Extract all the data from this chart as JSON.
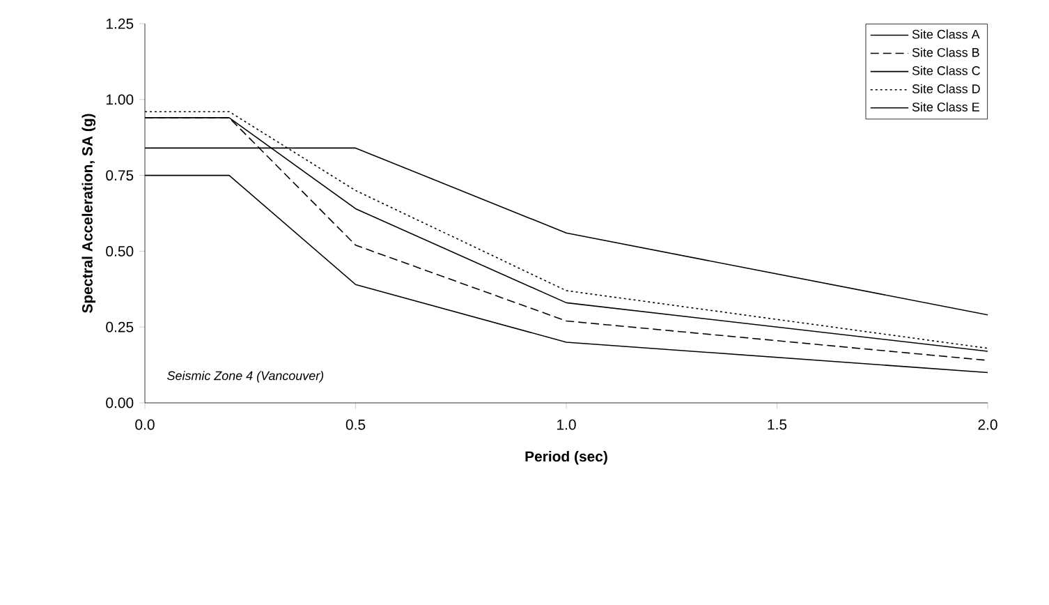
{
  "chart_data": {
    "type": "line",
    "xlabel": "Period (sec)",
    "ylabel": "Spectral Acceleration, SA (g)",
    "annotations": [
      "Seismic Zone 4 (Vancouver)"
    ],
    "x": [
      0,
      0.2,
      0.5,
      1.0,
      2.0
    ],
    "series": [
      {
        "name": "Site Class A",
        "color": "#000000",
        "line_style": "solid",
        "values": [
          0.75,
          0.75,
          0.39,
          0.2,
          0.1
        ]
      },
      {
        "name": "Site Class B",
        "color": "#000000",
        "line_style": "dashed",
        "values": [
          0.94,
          0.94,
          0.52,
          0.27,
          0.14
        ]
      },
      {
        "name": "Site Class C",
        "color": "#000000",
        "line_style": "solid",
        "values": [
          0.94,
          0.94,
          0.64,
          0.33,
          0.17
        ]
      },
      {
        "name": "Site Class D",
        "color": "#000000",
        "line_style": "dotted",
        "values": [
          0.96,
          0.96,
          0.7,
          0.37,
          0.18
        ]
      },
      {
        "name": "Site Class E",
        "color": "#000000",
        "line_style": "solid",
        "values": [
          0.84,
          0.84,
          0.84,
          0.56,
          0.29
        ]
      }
    ],
    "xlim": [
      0,
      2.0
    ],
    "ylim": [
      0,
      1.25
    ],
    "xticks": [
      {
        "value": 0,
        "label": "0.0"
      },
      {
        "value": 0.5,
        "label": "0.5"
      },
      {
        "value": 1.0,
        "label": "1.0"
      },
      {
        "value": 1.5,
        "label": "1.5"
      },
      {
        "value": 2.0,
        "label": "2.0"
      }
    ],
    "yticks": [
      {
        "value": 0,
        "label": "0.00"
      },
      {
        "value": 0.25,
        "label": "0.25"
      },
      {
        "value": 0.5,
        "label": "0.50"
      },
      {
        "value": 0.75,
        "label": "0.75"
      },
      {
        "value": 1.0,
        "label": "1.00"
      },
      {
        "value": 1.25,
        "label": "1.25"
      }
    ],
    "grid": false,
    "legend": "top right",
    "marker": "none"
  }
}
